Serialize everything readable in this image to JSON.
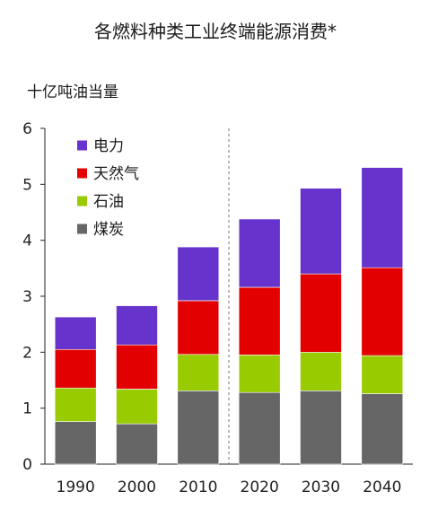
{
  "chart_data": {
    "type": "bar",
    "stacked": true,
    "title": "各燃料种类工业终端能源消费*",
    "ylabel": "十亿吨油当量",
    "xlabel": "",
    "categories": [
      "1990",
      "2000",
      "2010",
      "2020",
      "2030",
      "2040"
    ],
    "ylim": [
      0,
      6
    ],
    "yticks": [
      0,
      1,
      2,
      3,
      4,
      5,
      6
    ],
    "divider_between": [
      "2010",
      "2020"
    ],
    "legend_position": "top-left",
    "series": [
      {
        "name": "煤炭",
        "color": "#666666",
        "values": [
          0.76,
          0.72,
          1.31,
          1.28,
          1.31,
          1.26
        ]
      },
      {
        "name": "石油",
        "color": "#99cc00",
        "values": [
          0.6,
          0.62,
          0.65,
          0.67,
          0.69,
          0.68
        ]
      },
      {
        "name": "天然气",
        "color": "#e30000",
        "values": [
          0.69,
          0.79,
          0.96,
          1.21,
          1.4,
          1.57
        ]
      },
      {
        "name": "电力",
        "color": "#6633cc",
        "values": [
          0.58,
          0.7,
          0.96,
          1.22,
          1.53,
          1.79
        ]
      }
    ],
    "legend_order": [
      "电力",
      "天然气",
      "石油",
      "煤炭"
    ]
  }
}
